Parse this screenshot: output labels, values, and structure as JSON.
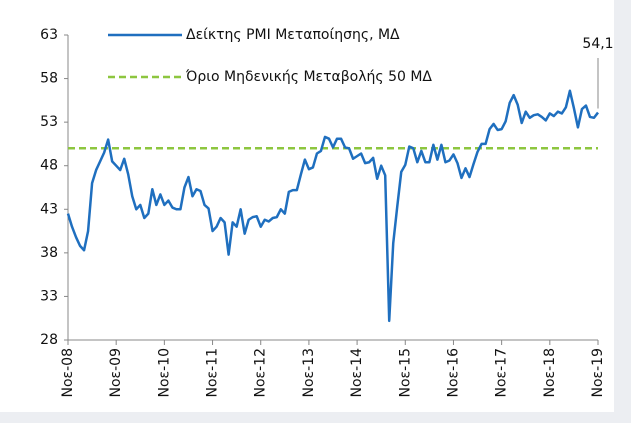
{
  "chart_data": {
    "type": "line",
    "categories": [
      "Νοε-08",
      null,
      null,
      null,
      null,
      null,
      null,
      null,
      null,
      null,
      null,
      null,
      "Νοε-09",
      null,
      null,
      null,
      null,
      null,
      null,
      null,
      null,
      null,
      null,
      null,
      "Νοε-10",
      null,
      null,
      null,
      null,
      null,
      null,
      null,
      null,
      null,
      null,
      null,
      "Νοε-11",
      null,
      null,
      null,
      null,
      null,
      null,
      null,
      null,
      null,
      null,
      null,
      "Νοε-12",
      null,
      null,
      null,
      null,
      null,
      null,
      null,
      null,
      null,
      null,
      null,
      "Νοε-13",
      null,
      null,
      null,
      null,
      null,
      null,
      null,
      null,
      null,
      null,
      null,
      "Νοε-14",
      null,
      null,
      null,
      null,
      null,
      null,
      null,
      null,
      null,
      null,
      null,
      "Νοε-15",
      null,
      null,
      null,
      null,
      null,
      null,
      null,
      null,
      null,
      null,
      null,
      "Νοε-16",
      null,
      null,
      null,
      null,
      null,
      null,
      null,
      null,
      null,
      null,
      null,
      "Νοε-17",
      null,
      null,
      null,
      null,
      null,
      null,
      null,
      null,
      null,
      null,
      null,
      "Νοε-18",
      null,
      null,
      null,
      null,
      null,
      null,
      null,
      null,
      null,
      null,
      null,
      "Νοε-19"
    ],
    "series": [
      {
        "name": "Δείκτης PMI Μεταποίησης, ΜΔ",
        "color": "#1f6fbf",
        "values": [
          42.5,
          41,
          39.8,
          38.8,
          38.3,
          40.5,
          46,
          47.5,
          48.5,
          49.5,
          51,
          48.5,
          48,
          47.5,
          48.8,
          47,
          44.5,
          43,
          43.5,
          42,
          42.5,
          45.3,
          43.5,
          44.7,
          43.5,
          44,
          43.2,
          43,
          43,
          45.5,
          46.7,
          44.5,
          45.3,
          45.1,
          43.5,
          43.1,
          40.5,
          41,
          42,
          41.5,
          37.8,
          41.5,
          41,
          43,
          40.2,
          41.8,
          42.1,
          42.2,
          41,
          41.8,
          41.6,
          42,
          42.1,
          43,
          42.5,
          45,
          45.2,
          45.2,
          47,
          48.7,
          47.6,
          47.8,
          49.4,
          49.7,
          51.3,
          51.1,
          50.1,
          51.1,
          51.1,
          50.1,
          50,
          48.8,
          49.1,
          49.4,
          48.3,
          48.4,
          48.9,
          46.5,
          48,
          46.9,
          30.2,
          39.1,
          43.3,
          47.3,
          48.1,
          50.2,
          50,
          48.4,
          49.7,
          48.4,
          48.4,
          50.4,
          48.7,
          50.4,
          48.4,
          48.6,
          49.3,
          48.3,
          46.6,
          47.7,
          46.7,
          48.2,
          49.6,
          50.5,
          50.5,
          52.2,
          52.8,
          52.1,
          52.2,
          53.1,
          55.2,
          56.1,
          55,
          52.9,
          54.2,
          53.5,
          53.8,
          53.9,
          53.6,
          53.2,
          54,
          53.7,
          54.2,
          54,
          54.7,
          56.6,
          54.6,
          52.4,
          54.5,
          54.9,
          53.6,
          53.5,
          54.1
        ]
      }
    ],
    "reference_line": {
      "name": "Όριο Μηδενικής Μεταβολής 50 ΜΔ",
      "value": 50,
      "color": "#8dc63f"
    },
    "annotation": {
      "label": "54,1",
      "value": 54.1
    },
    "ylim": [
      28,
      63
    ],
    "yticks": [
      28,
      33,
      38,
      43,
      48,
      53,
      58,
      63
    ],
    "grid": false
  }
}
